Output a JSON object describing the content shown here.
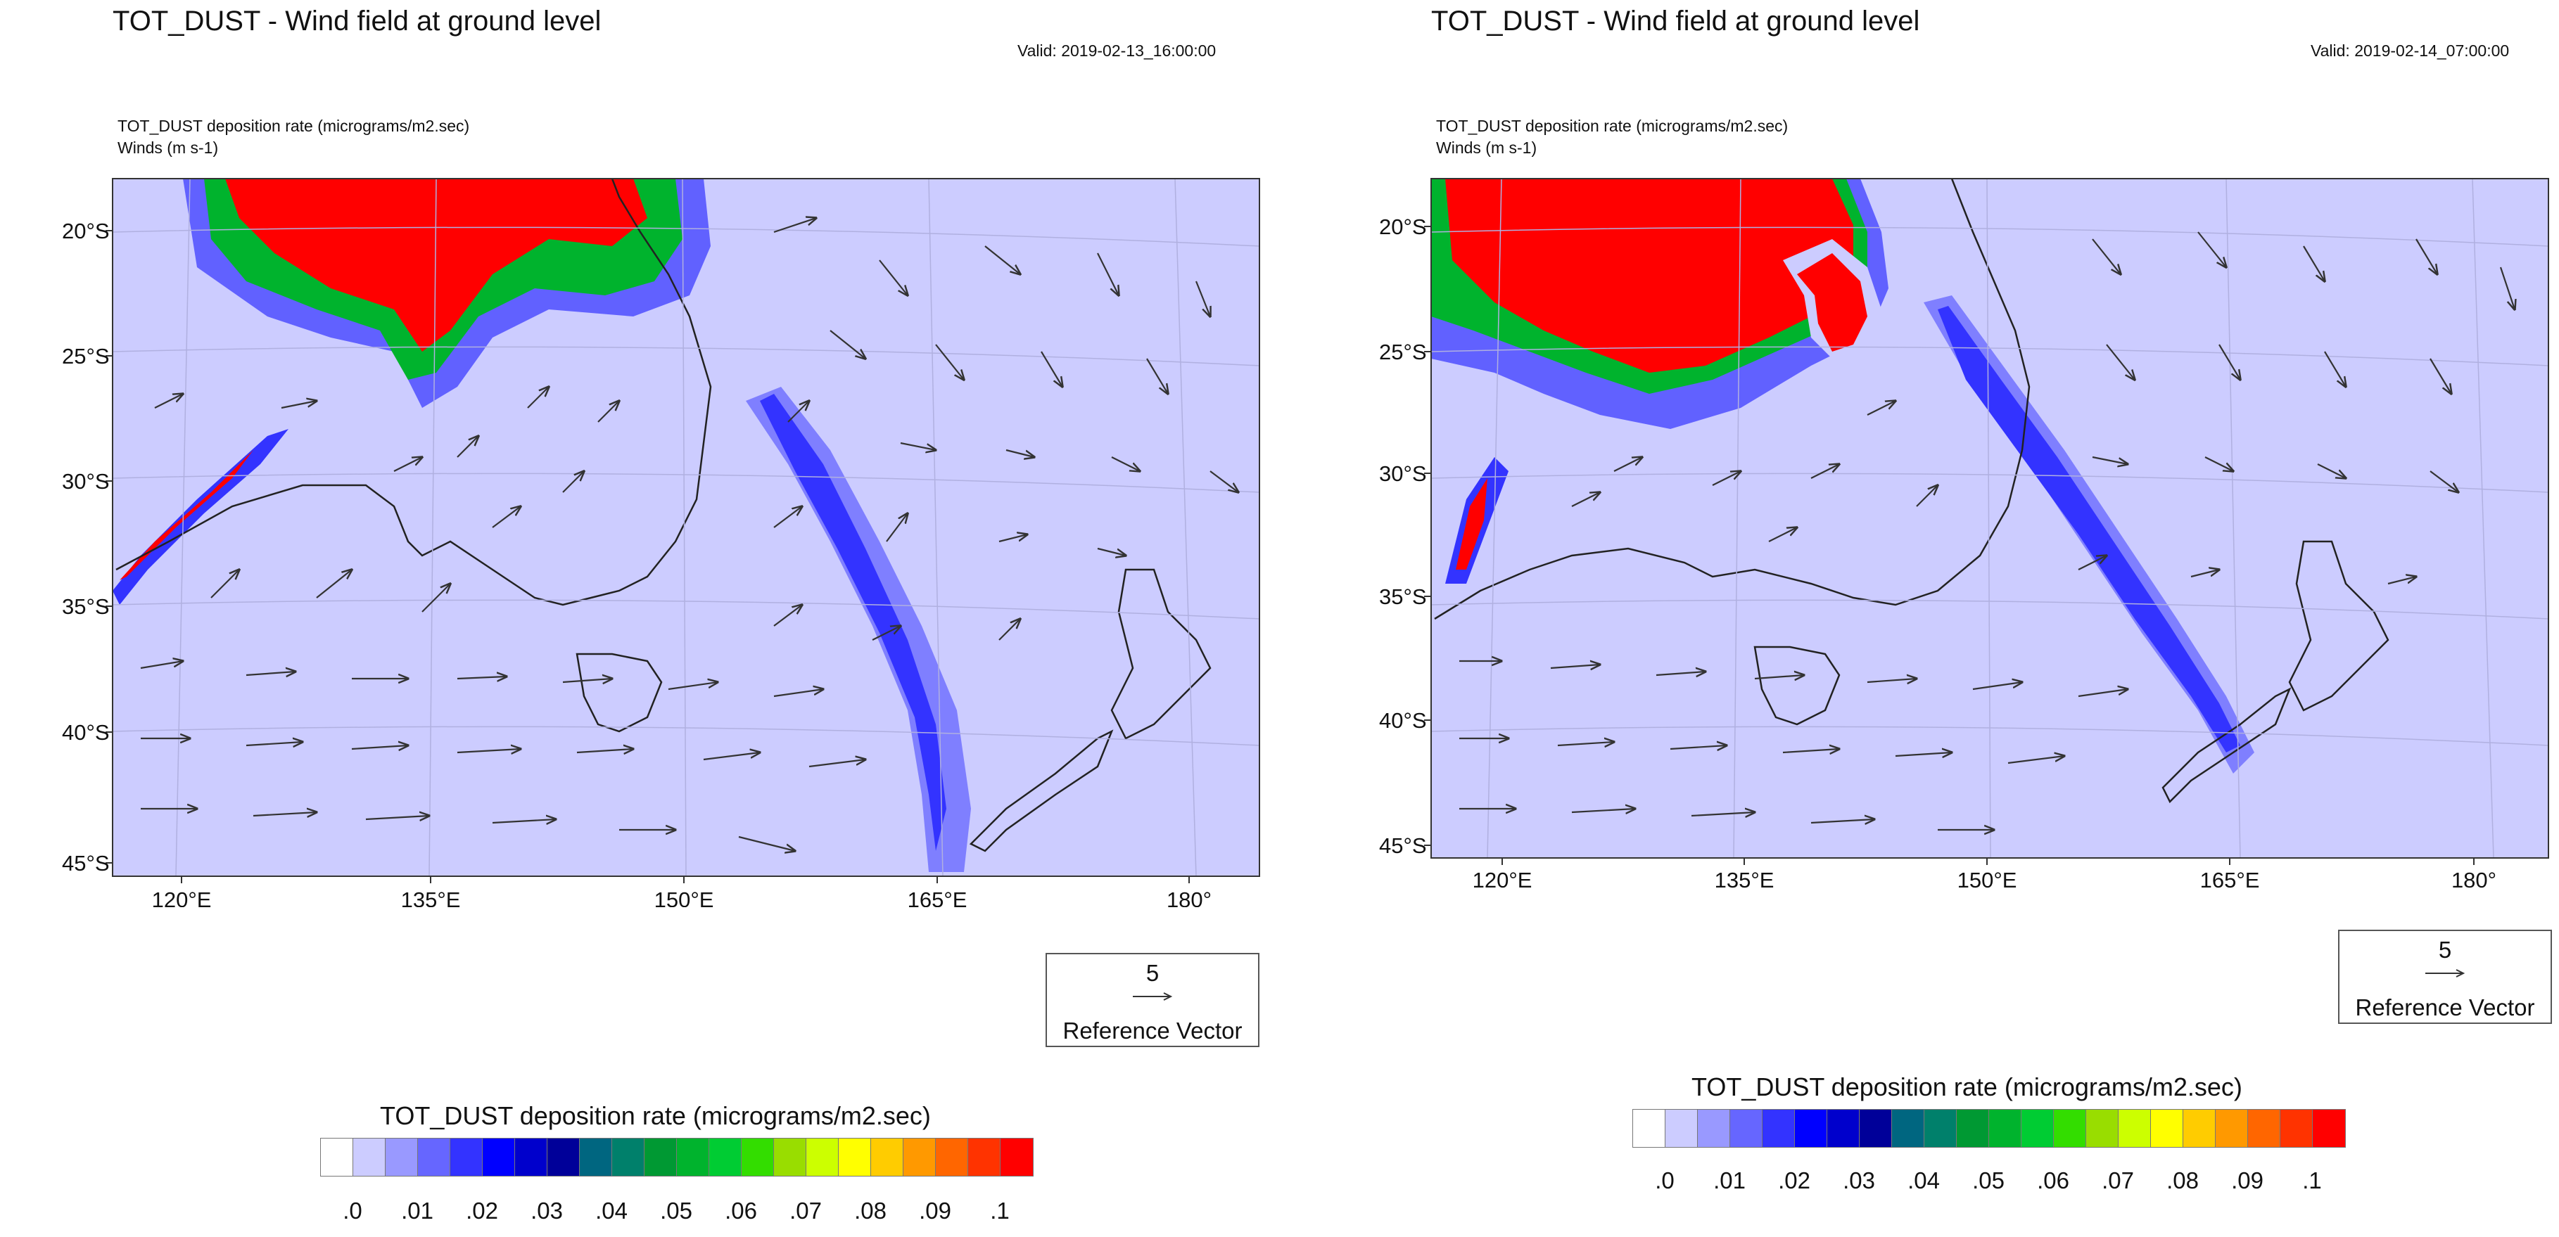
{
  "panels": [
    {
      "title": "TOT_DUST - Wind field at ground level",
      "valid": "Valid: 2019-02-13_16:00:00",
      "subtitle_line1": "TOT_DUST deposition rate   (micrograms/m2.sec)",
      "subtitle_line2": "Winds   (m s-1)",
      "lat_labels": [
        "20°S",
        "25°S",
        "30°S",
        "35°S",
        "40°S",
        "45°S"
      ],
      "lon_labels": [
        "120°E",
        "135°E",
        "150°E",
        "165°E",
        "180°"
      ],
      "reference_vector": {
        "magnitude": "5",
        "label": "Reference Vector"
      },
      "colorbar": {
        "title": "TOT_DUST deposition rate  (micrograms/m2.sec)",
        "ticks": [
          ".0",
          ".01",
          ".02",
          ".03",
          ".04",
          ".05",
          ".06",
          ".07",
          ".08",
          ".09",
          ".1"
        ]
      }
    },
    {
      "title": "TOT_DUST - Wind field at ground level",
      "valid": "Valid: 2019-02-14_07:00:00",
      "subtitle_line1": "TOT_DUST deposition rate   (micrograms/m2.sec)",
      "subtitle_line2": "Winds   (m s-1)",
      "lat_labels": [
        "20°S",
        "25°S",
        "30°S",
        "35°S",
        "40°S",
        "45°S"
      ],
      "lon_labels": [
        "120°E",
        "135°E",
        "150°E",
        "165°E",
        "180°"
      ],
      "reference_vector": {
        "magnitude": "5",
        "label": "Reference Vector"
      },
      "colorbar": {
        "title": "TOT_DUST deposition rate  (micrograms/m2.sec)",
        "ticks": [
          ".0",
          ".01",
          ".02",
          ".03",
          ".04",
          ".05",
          ".06",
          ".07",
          ".08",
          ".09",
          ".1"
        ]
      }
    }
  ],
  "colors": {
    "background_field": "#ccccff",
    "high_dust": "#ff0000",
    "colorbar": [
      "#ffffff",
      "#ccccff",
      "#9999ff",
      "#6666ff",
      "#3333ff",
      "#0000ff",
      "#0000cc",
      "#000099",
      "#006680",
      "#00806b",
      "#009933",
      "#00b32d",
      "#00cc33",
      "#33dd00",
      "#99dd00",
      "#ccff00",
      "#ffff00",
      "#ffcc00",
      "#ff9900",
      "#ff6600",
      "#ff3300",
      "#ff0000"
    ]
  }
}
